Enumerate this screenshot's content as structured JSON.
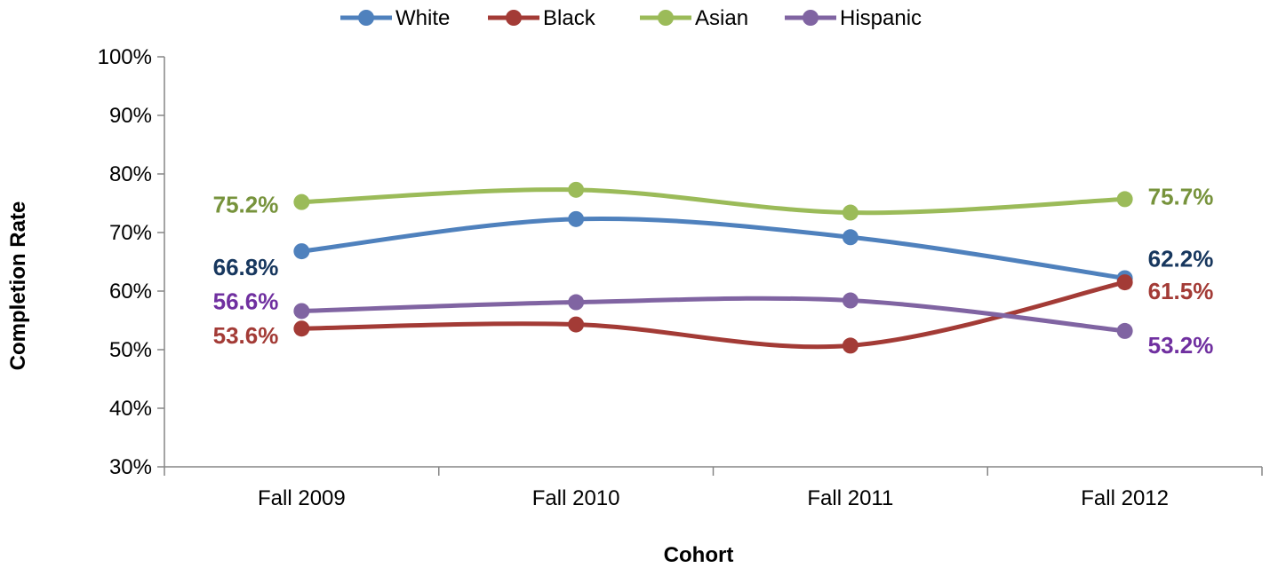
{
  "chart_data": {
    "type": "line",
    "categories": [
      "Fall 2009",
      "Fall 2010",
      "Fall 2011",
      "Fall 2012"
    ],
    "xlabel": "Cohort",
    "ylabel": "Completion Rate",
    "ylim": [
      30,
      100
    ],
    "yticks": [
      "30%",
      "40%",
      "50%",
      "60%",
      "70%",
      "80%",
      "90%",
      "100%"
    ],
    "grid": false,
    "legend_position": "top",
    "smooth": true,
    "series": [
      {
        "name": "White",
        "color": "#4F81BD",
        "label_color": "#17375E",
        "values": [
          66.8,
          72.3,
          69.2,
          62.2
        ],
        "labels": [
          {
            "index": 0,
            "text": "66.8%",
            "side": "left",
            "dy": 18
          },
          {
            "index": 3,
            "text": "62.2%",
            "side": "right",
            "dy": -22
          }
        ]
      },
      {
        "name": "Black",
        "color": "#A33B36",
        "label_color": "#A33B36",
        "values": [
          53.6,
          54.3,
          50.7,
          61.5
        ],
        "labels": [
          {
            "index": 0,
            "text": "53.6%",
            "side": "left",
            "dy": 8
          },
          {
            "index": 3,
            "text": "61.5%",
            "side": "right",
            "dy": 10
          }
        ]
      },
      {
        "name": "Asian",
        "color": "#9BBB59",
        "label_color": "#77933C",
        "values": [
          75.2,
          77.3,
          73.4,
          75.7
        ],
        "labels": [
          {
            "index": 0,
            "text": "75.2%",
            "side": "left",
            "dy": 3
          },
          {
            "index": 3,
            "text": "75.7%",
            "side": "right",
            "dy": -3
          }
        ]
      },
      {
        "name": "Hispanic",
        "color": "#8064A2",
        "label_color": "#7030A0",
        "values": [
          56.6,
          58.1,
          58.4,
          53.2
        ],
        "labels": [
          {
            "index": 0,
            "text": "56.6%",
            "side": "left",
            "dy": -11
          },
          {
            "index": 3,
            "text": "53.2%",
            "side": "right",
            "dy": 16
          }
        ]
      }
    ]
  }
}
